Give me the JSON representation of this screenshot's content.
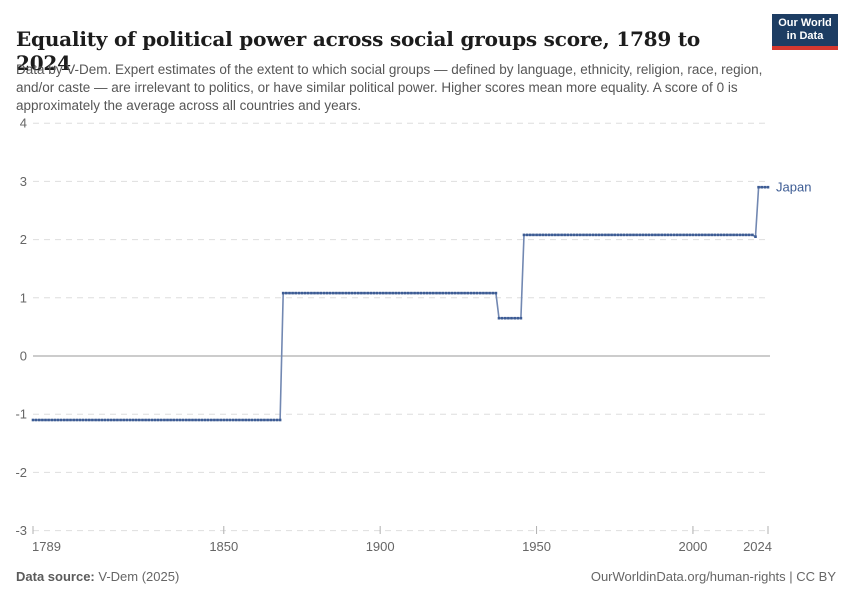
{
  "header": {
    "title": "Equality of political power across social groups score, 1789 to 2024",
    "logo_line1": "Our World",
    "logo_line2": "in Data"
  },
  "subtitle": "Data by V-Dem. Expert estimates of the extent to which social groups — defined by language, ethnicity, religion, race, region, and/or caste — are irrelevant to politics, or have similar political power. Higher scores mean more equality. A score of 0 is approximately the average across all countries and years.",
  "chart_data": {
    "type": "line",
    "title": "Equality of political power across social groups score, 1789 to 2024",
    "xlabel": "",
    "ylabel": "",
    "xlim": [
      1789,
      2024
    ],
    "ylim": [
      -3,
      4
    ],
    "x_ticks": [
      1789,
      1850,
      1900,
      1950,
      2000,
      2024
    ],
    "y_ticks": [
      4,
      3,
      2,
      1,
      0,
      -1,
      -2,
      -3
    ],
    "grid": "horizontal-dashed",
    "zero_line": true,
    "legend_position": "end-of-line-label",
    "series": [
      {
        "name": "Japan",
        "step_breakpoints": [
          [
            1789,
            -1.1
          ],
          [
            1868,
            -1.1
          ],
          [
            1869,
            1.08
          ],
          [
            1937,
            1.08
          ],
          [
            1938,
            0.65
          ],
          [
            1945,
            0.65
          ],
          [
            1946,
            2.08
          ],
          [
            2019,
            2.08
          ],
          [
            2020,
            2.05
          ],
          [
            2021,
            2.9
          ],
          [
            2024,
            2.9
          ]
        ]
      }
    ]
  },
  "footer": {
    "source_label": "Data source:",
    "source_value": " V-Dem (2025)",
    "right_text": "OurWorldinData.org/human-rights | CC BY"
  },
  "colors": {
    "line": "#3d5c94",
    "line_connector": "#7288b2",
    "series_label": "#3d5c94",
    "grid": "#dedede",
    "zero_line": "#9a9a9a",
    "axis_text": "#666666",
    "tick_mark": "#b0b0b0",
    "logo_navy": "#1d3d63",
    "logo_red": "#d5382f",
    "title_text": "#1c1c1c",
    "subtitle_text": "#565656"
  }
}
